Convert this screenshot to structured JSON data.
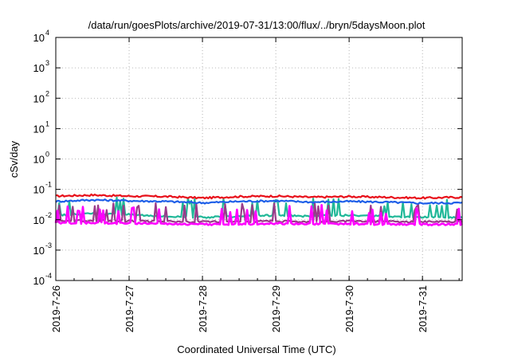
{
  "chart_data": {
    "type": "line",
    "title": "/data/run/goesPlots/archive/2019-07-31/13:00/flux/../bryn/5daysMoon.plot",
    "xlabel": "Coordinated Universal Time (UTC)",
    "ylabel": "cSv/day",
    "yscale": "log",
    "ylim": [
      0.0001,
      10000
    ],
    "y_ticks": [
      {
        "base": "10",
        "exp": "-4"
      },
      {
        "base": "10",
        "exp": "-3"
      },
      {
        "base": "10",
        "exp": "-2"
      },
      {
        "base": "10",
        "exp": "-1"
      },
      {
        "base": "10",
        "exp": "0"
      },
      {
        "base": "10",
        "exp": "1"
      },
      {
        "base": "10",
        "exp": "2"
      },
      {
        "base": "10",
        "exp": "3"
      },
      {
        "base": "10",
        "exp": "4"
      }
    ],
    "xlim": [
      "2019-07-26",
      "2019-07-31 13:00"
    ],
    "x_tick_labels": [
      "2019-7-26",
      "2019-7-27",
      "2019-7-28",
      "2019-7-29",
      "2019-7-30",
      "2019-7-31"
    ],
    "grid": true,
    "series": [
      {
        "color": "#e8101a",
        "x": [
          "2019-07-26",
          "2019-07-26 12:00",
          "2019-07-27",
          "2019-07-27 12:00",
          "2019-07-28",
          "2019-07-28 12:00",
          "2019-07-29",
          "2019-07-29 12:00",
          "2019-07-30",
          "2019-07-30 12:00",
          "2019-07-31",
          "2019-07-31 12:00"
        ],
        "values": [
          0.06,
          0.065,
          0.06,
          0.058,
          0.052,
          0.058,
          0.06,
          0.055,
          0.058,
          0.055,
          0.052,
          0.055
        ]
      },
      {
        "color": "#1e5fe8",
        "x": [
          "2019-07-26",
          "2019-07-26 12:00",
          "2019-07-27",
          "2019-07-27 12:00",
          "2019-07-28",
          "2019-07-28 12:00",
          "2019-07-29",
          "2019-07-29 12:00",
          "2019-07-30",
          "2019-07-30 12:00",
          "2019-07-31",
          "2019-07-31 12:00"
        ],
        "values": [
          0.04,
          0.045,
          0.042,
          0.04,
          0.036,
          0.04,
          0.042,
          0.038,
          0.04,
          0.038,
          0.035,
          0.036
        ]
      },
      {
        "color": "#20b898",
        "x": [
          "2019-07-26",
          "2019-07-26 12:00",
          "2019-07-27",
          "2019-07-27 12:00",
          "2019-07-28",
          "2019-07-28 12:00",
          "2019-07-29",
          "2019-07-29 12:00",
          "2019-07-30",
          "2019-07-30 12:00",
          "2019-07-31",
          "2019-07-31 12:00"
        ],
        "values": [
          0.014,
          0.016,
          0.015,
          0.013,
          0.012,
          0.013,
          0.014,
          0.013,
          0.014,
          0.013,
          0.012,
          0.012
        ]
      },
      {
        "color": "#9a3a8a",
        "x": [
          "2019-07-26",
          "2019-07-26 12:00",
          "2019-07-27",
          "2019-07-27 12:00",
          "2019-07-28",
          "2019-07-28 12:00",
          "2019-07-29",
          "2019-07-29 12:00",
          "2019-07-30",
          "2019-07-30 12:00",
          "2019-07-31",
          "2019-07-31 12:00"
        ],
        "values": [
          0.009,
          0.0095,
          0.009,
          0.0088,
          0.0085,
          0.0088,
          0.009,
          0.0087,
          0.0089,
          0.0087,
          0.0085,
          0.0086
        ]
      },
      {
        "color": "#ff00ff",
        "x": [
          "2019-07-26",
          "2019-07-26 12:00",
          "2019-07-27",
          "2019-07-27 12:00",
          "2019-07-28",
          "2019-07-28 12:00",
          "2019-07-29",
          "2019-07-29 12:00",
          "2019-07-30",
          "2019-07-30 12:00",
          "2019-07-31",
          "2019-07-31 12:00"
        ],
        "values": [
          0.0075,
          0.008,
          0.0076,
          0.0074,
          0.007,
          0.0073,
          0.0075,
          0.0072,
          0.0074,
          0.0072,
          0.007,
          0.0071
        ]
      }
    ]
  }
}
